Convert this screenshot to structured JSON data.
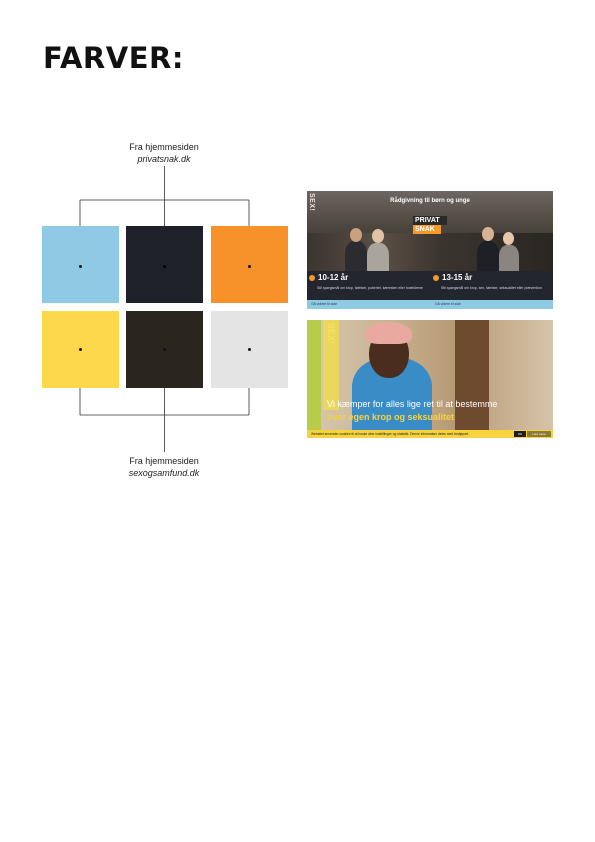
{
  "heading": "FARVER:",
  "top_caption": {
    "line1": "Fra hjemmesiden",
    "site": "privatsnak.dk"
  },
  "bottom_caption": {
    "line1": "Fra hjemmesiden",
    "site": "sexogsamfund.dk"
  },
  "swatches": {
    "top": [
      {
        "name": "light-blue",
        "color": "#8ecae3"
      },
      {
        "name": "dark-navy",
        "color": "#1e2129"
      },
      {
        "name": "orange",
        "color": "#f7922a"
      }
    ],
    "bottom": [
      {
        "name": "yellow",
        "color": "#fcd84a"
      },
      {
        "name": "dark-brown",
        "color": "#2a251e"
      },
      {
        "name": "light-grey",
        "color": "#e4e4e4"
      }
    ]
  },
  "screenshot_privatsnak": {
    "logo": "SEX!",
    "tagline": "Rådgivning til børn og unge",
    "brand_line1": "PRIVAT",
    "brand_line2": "SNAK",
    "left_age": "10-12 år",
    "left_desc": "Stil spørgsmål om krop, følelser, pubertet, kæresten eller forældrene",
    "right_age": "13-15 år",
    "right_desc": "Stil spørgsmål om krop, sex, følelser, seksualitet eller prævention",
    "left_link": "Gå videre til side",
    "right_link": "Gå videre til side"
  },
  "screenshot_sexogsamfund": {
    "logo": "SEX!",
    "headline1": "Vi kæmper for alles lige ret til at bestemme",
    "headline2": "over egen krop og seksualitet",
    "cookie_text": "Websitet anvender cookies til at huske dine indstillinger og statistik. Denne information deles med tredjepart.",
    "ok_label": "OK",
    "more_label": "Læs mere"
  }
}
